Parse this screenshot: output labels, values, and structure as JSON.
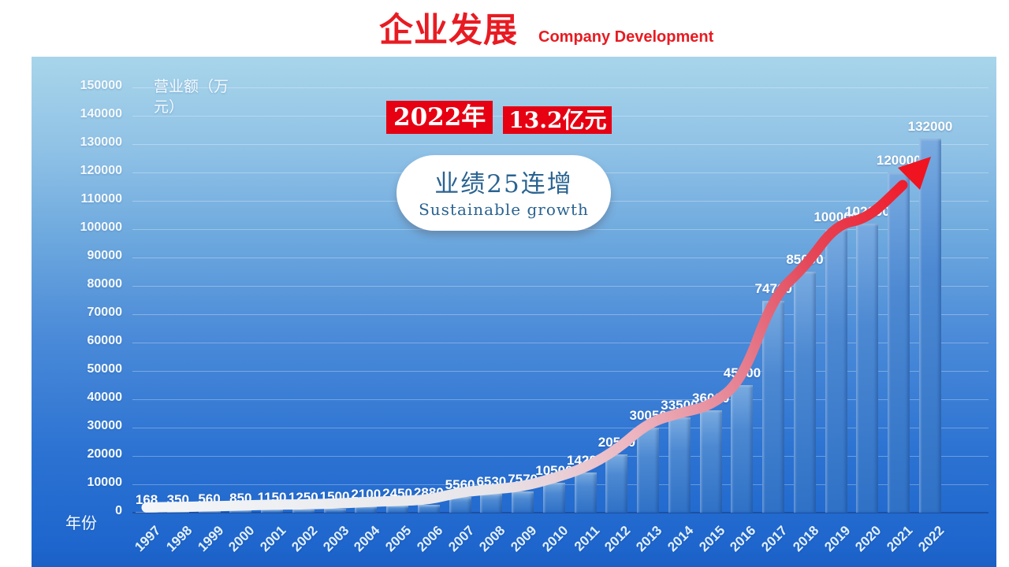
{
  "header": {
    "title": "企业发展",
    "subtitle": "Company Development"
  },
  "highlight": {
    "year": "2022年",
    "amount": "13.2亿元"
  },
  "callout": {
    "title": "业绩25连增",
    "subtitle": "Sustainable growth"
  },
  "chart_data": {
    "type": "bar",
    "title": "企业发展 Company Development",
    "categories": [
      "1997",
      "1998",
      "1999",
      "2000",
      "2001",
      "2002",
      "2003",
      "2004",
      "2005",
      "2006",
      "2007",
      "2008",
      "2009",
      "2010",
      "2011",
      "2012",
      "2013",
      "2014",
      "2015",
      "2016",
      "2017",
      "2018",
      "2019",
      "2020",
      "2021",
      "2022"
    ],
    "values": [
      168,
      350,
      560,
      850,
      1150,
      1250,
      1500,
      2100,
      2450,
      2880,
      5560,
      6530,
      7570,
      10500,
      14200,
      20500,
      30050,
      33500,
      36000,
      45000,
      74700,
      85000,
      100000,
      102000,
      120000,
      132000
    ],
    "xlabel": "年份",
    "ylabel": "营业额（万元）",
    "ylim": [
      0,
      150000
    ],
    "ytick_step": 10000,
    "yticks": [
      0,
      10000,
      20000,
      30000,
      40000,
      50000,
      60000,
      70000,
      80000,
      90000,
      100000,
      110000,
      120000,
      130000,
      140000,
      150000
    ],
    "grid": true,
    "legend": "none",
    "annotation": "white-to-red growth arrow riding along bar tops, arrowhead pointing at 2022 bar"
  },
  "colors": {
    "title_red": "#e81b22",
    "banner_bg": "#e60012",
    "banner_text": "#ffffff",
    "background_top": "#a8d5ea",
    "background_bottom": "#1e66cd",
    "bar_top": "#79abe0",
    "bar_bottom": "#2f71c6",
    "axis_text": "#ffffff",
    "callout_text": "#2a6391",
    "arrow_start": "#f3f6f8",
    "arrow_mid": "#ecb6c1",
    "arrow_end": "#f3101f"
  }
}
